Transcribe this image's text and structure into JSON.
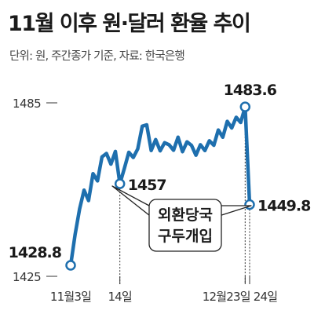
{
  "title": "11월 이후 원·달러 환율 추이",
  "subtitle": "단위: 원, 주간종가 기준, 자료: 한국은행",
  "annotation": [
    "외환당국",
    "구두개입"
  ],
  "colors": {
    "line": "#1e6fae",
    "text": "#1e1e1e",
    "marker_fill": "#ffffff"
  },
  "chart_data": {
    "type": "line",
    "title": "11월 이후 원·달러 환율 추이",
    "xlabel": "",
    "ylabel": "",
    "ylim": [
      1425,
      1485
    ],
    "y_ticks": [
      1425,
      1485
    ],
    "x_tick_labels": [
      "11월3일",
      "14일",
      "12월23일",
      "24일"
    ],
    "grid": false,
    "series": [
      {
        "values": [
          1428.8,
          1439.5,
          1448.3,
          1454.8,
          1451.2,
          1460.5,
          1458.0,
          1466.3,
          1467.5,
          1463.8,
          1468.2,
          1457.0,
          1462.3,
          1467.9,
          1466.1,
          1469.1,
          1476.9,
          1477.4,
          1468.5,
          1472.3,
          1468.4,
          1471.2,
          1470.5,
          1468.6,
          1473.1,
          1468.1,
          1471.5,
          1470.3,
          1466.9,
          1470.5,
          1468.5,
          1471.9,
          1470.3,
          1475.6,
          1473.1,
          1478.6,
          1476.3,
          1480.0,
          1478.2,
          1483.6,
          1449.8
        ]
      }
    ],
    "data_labels": [
      {
        "index": 0,
        "text": "1428.8"
      },
      {
        "index": 11,
        "text": "1457"
      },
      {
        "index": 39,
        "text": "1483.6"
      },
      {
        "index": 40,
        "text": "1449.8"
      }
    ]
  }
}
